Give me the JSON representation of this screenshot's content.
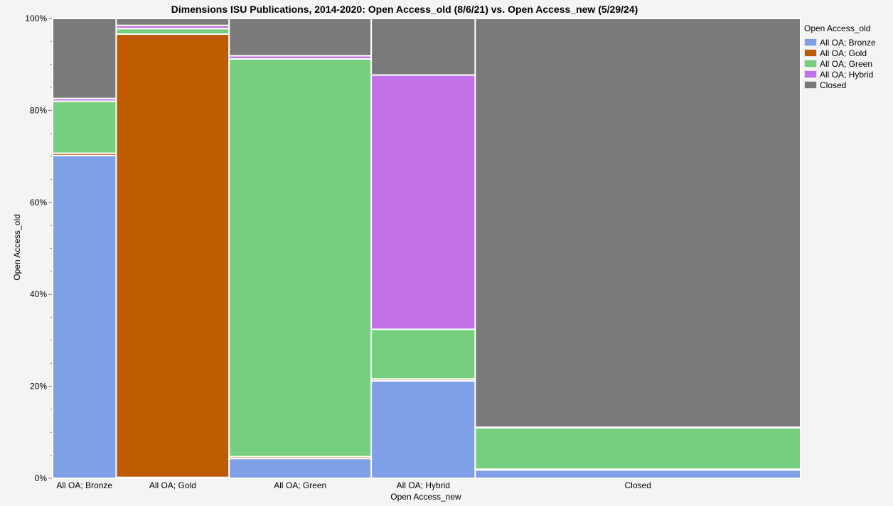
{
  "chart_data": {
    "type": "mosaic",
    "title": "Dimensions ISU Publications, 2014-2020: Open Access_old (8/6/21) vs. Open Access_new (5/29/24)",
    "xlabel": "Open Access_new",
    "ylabel": "Open Access_old",
    "ylim": [
      0,
      100
    ],
    "yticks": [
      "0%",
      "20%",
      "40%",
      "60%",
      "80%",
      "100%"
    ],
    "legend_title": "Open Access_old",
    "legend_position": "right",
    "series_colors": {
      "All OA; Bronze": "#7f9fe6",
      "All OA; Gold": "#bf5b00",
      "All OA; Green": "#76cf7e",
      "All OA; Hybrid": "#c271e9",
      "Closed": "#7a7a7a"
    },
    "legend": [
      {
        "name": "All OA; Bronze",
        "color": "#7f9fe6"
      },
      {
        "name": "All OA; Gold",
        "color": "#bf5b00"
      },
      {
        "name": "All OA; Green",
        "color": "#76cf7e"
      },
      {
        "name": "All OA; Hybrid",
        "color": "#c271e9"
      },
      {
        "name": "Closed",
        "color": "#7a7a7a"
      }
    ],
    "columns": [
      {
        "label": "All OA; Bronze",
        "width_share": 0.085,
        "segments": [
          {
            "series": "All OA; Bronze",
            "value": 70.2
          },
          {
            "series": "All OA; Gold",
            "value": 0.5
          },
          {
            "series": "All OA; Green",
            "value": 11.3
          },
          {
            "series": "All OA; Hybrid",
            "value": 0.6
          },
          {
            "series": "Closed",
            "value": 17.4
          }
        ]
      },
      {
        "label": "All OA; Gold",
        "width_share": 0.151,
        "segments": [
          {
            "series": "All OA; Bronze",
            "value": 0.2
          },
          {
            "series": "All OA; Gold",
            "value": 96.4
          },
          {
            "series": "All OA; Green",
            "value": 1.2
          },
          {
            "series": "All OA; Hybrid",
            "value": 0.7
          },
          {
            "series": "Closed",
            "value": 1.5
          }
        ]
      },
      {
        "label": "All OA; Green",
        "width_share": 0.19,
        "segments": [
          {
            "series": "All OA; Bronze",
            "value": 4.3
          },
          {
            "series": "All OA; Gold",
            "value": 0.4
          },
          {
            "series": "All OA; Green",
            "value": 86.5
          },
          {
            "series": "All OA; Hybrid",
            "value": 0.7
          },
          {
            "series": "Closed",
            "value": 8.1
          }
        ]
      },
      {
        "label": "All OA; Hybrid",
        "width_share": 0.139,
        "segments": [
          {
            "series": "All OA; Bronze",
            "value": 21.2
          },
          {
            "series": "All OA; Gold",
            "value": 0.4
          },
          {
            "series": "All OA; Green",
            "value": 10.8
          },
          {
            "series": "All OA; Hybrid",
            "value": 55.3
          },
          {
            "series": "Closed",
            "value": 12.3
          }
        ]
      },
      {
        "label": "Closed",
        "width_share": 0.435,
        "segments": [
          {
            "series": "All OA; Bronze",
            "value": 1.8
          },
          {
            "series": "All OA; Gold",
            "value": 0.2
          },
          {
            "series": "All OA; Green",
            "value": 9.0
          },
          {
            "series": "All OA; Hybrid",
            "value": 0.1
          },
          {
            "series": "Closed",
            "value": 88.9
          }
        ]
      }
    ]
  }
}
